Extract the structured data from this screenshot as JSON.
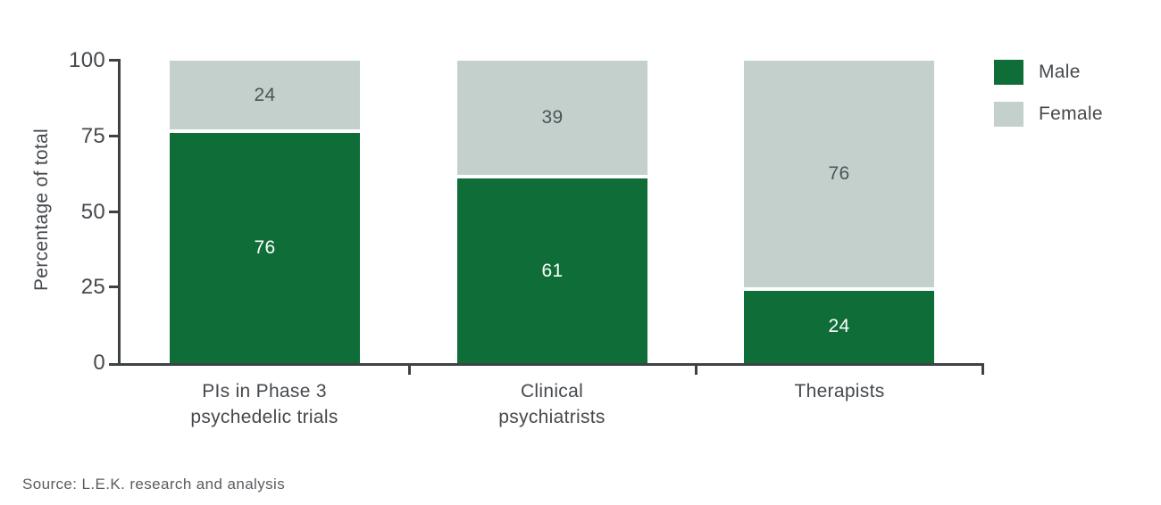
{
  "chart_data": {
    "type": "bar",
    "stacked": true,
    "orientation": "vertical",
    "categories": [
      "PIs in Phase 3\npsychedelic trials",
      "Clinical\npsychiatrists",
      "Therapists"
    ],
    "series": [
      {
        "name": "Male",
        "color": "#0f6d38",
        "label_color": "#ffffff",
        "values": [
          76,
          61,
          24
        ]
      },
      {
        "name": "Female",
        "color": "#c3d0cb",
        "label_color": "#4d5357",
        "values": [
          24,
          39,
          76
        ]
      }
    ],
    "title": "",
    "xlabel": "",
    "ylabel": "Percentage of total",
    "ylim": [
      0,
      100
    ],
    "yticks": [
      "100",
      "75",
      "50",
      "25",
      "0"
    ],
    "grid": false,
    "legend_position": "top-right",
    "axis_color": "#3e4245"
  },
  "source_note": "Source: L.E.K. research and analysis"
}
